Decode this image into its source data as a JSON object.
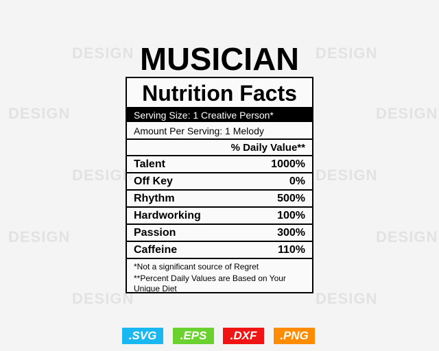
{
  "watermark": "DESIGN",
  "title": "MUSICIAN",
  "label": {
    "heading": "Nutrition Facts",
    "serving_size": "Serving Size: 1 Creative Person*",
    "amount_per_serving": "Amount Per Serving: 1 Melody",
    "daily_value_header": "% Daily Value**",
    "rows": [
      {
        "name": "Talent",
        "value": "1000%"
      },
      {
        "name": "Off Key",
        "value": "0%"
      },
      {
        "name": "Rhythm",
        "value": "500%"
      },
      {
        "name": "Hardworking",
        "value": "100%"
      },
      {
        "name": "Passion",
        "value": "300%"
      },
      {
        "name": "Caffeine",
        "value": "110%"
      }
    ],
    "footnotes": [
      "*Not a significant source of Regret",
      "**Percent Daily Values are Based on Your Unique Diet"
    ]
  },
  "formats": [
    {
      "label": ".SVG",
      "color": "#1ab8f0"
    },
    {
      "label": ".EPS",
      "color": "#6bd12e"
    },
    {
      "label": ".DXF",
      "color": "#f01414"
    },
    {
      "label": ".PNG",
      "color": "#ff8c00"
    }
  ]
}
